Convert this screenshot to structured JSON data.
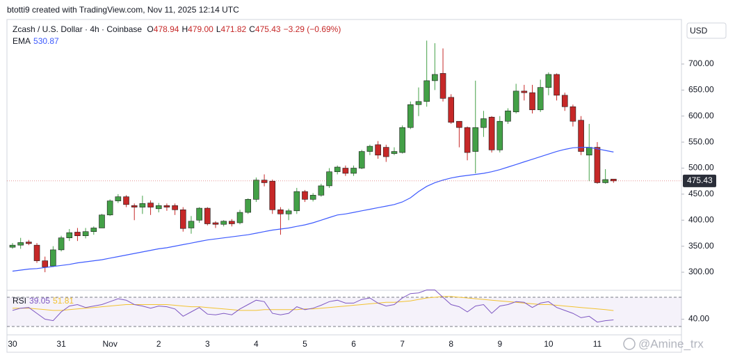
{
  "chart_data": {
    "type": "candlestick",
    "header": "btotti9 created with TradingView.com, Nov 11, 2025 12:14 UTC",
    "symbol": "Zcash / U.S. Dollar · 4h · Coinbase",
    "ohlc_legend": [
      [
        "O",
        "478.94"
      ],
      [
        "H",
        "479.00"
      ],
      [
        "L",
        "471.82"
      ],
      [
        "C",
        "475.43"
      ]
    ],
    "change": "−3.29 (−0.69%)",
    "currency": "USD",
    "last_price_label": "475.43",
    "watermark": "@Amine_trx",
    "up_color": "#43a047",
    "down_color": "#c62828",
    "categories": [
      "30",
      null,
      null,
      null,
      null,
      null,
      "31",
      null,
      null,
      null,
      null,
      null,
      "Nov",
      null,
      null,
      null,
      null,
      null,
      "2",
      null,
      null,
      null,
      null,
      null,
      "3",
      null,
      null,
      null,
      null,
      null,
      "4",
      null,
      null,
      null,
      null,
      null,
      "5",
      null,
      null,
      null,
      null,
      null,
      "6",
      null,
      null,
      null,
      null,
      null,
      "7",
      null,
      null,
      null,
      null,
      null,
      "8",
      null,
      null,
      null,
      null,
      null,
      "9",
      null,
      null,
      null,
      null,
      null,
      "10",
      null,
      null,
      null,
      null,
      null,
      "11",
      null,
      null
    ],
    "candles": {
      "open": [
        348,
        352,
        358,
        352,
        322,
        312,
        343,
        366,
        377,
        370,
        378,
        385,
        410,
        437,
        445,
        428,
        425,
        433,
        422,
        428,
        428,
        420,
        385,
        400,
        423,
        395,
        392,
        398,
        395,
        415,
        440,
        477,
        475,
        420,
        412,
        418,
        455,
        440,
        448,
        466,
        493,
        500,
        490,
        500,
        532,
        545,
        540,
        528,
        530,
        578,
        622,
        628,
        668,
        682,
        636,
        590,
        578,
        532,
        578,
        598,
        535,
        590,
        608,
        648,
        645,
        612,
        655,
        680,
        640,
        618,
        592,
        525,
        540,
        472,
        478.94
      ],
      "high": [
        356,
        366,
        362,
        356,
        330,
        350,
        370,
        383,
        385,
        385,
        388,
        412,
        440,
        450,
        448,
        432,
        447,
        438,
        433,
        432,
        432,
        425,
        408,
        425,
        425,
        398,
        400,
        402,
        420,
        442,
        482,
        488,
        478,
        425,
        422,
        462,
        458,
        452,
        470,
        500,
        505,
        505,
        505,
        535,
        545,
        552,
        545,
        540,
        582,
        628,
        655,
        745,
        740,
        730,
        642,
        590,
        580,
        668,
        610,
        600,
        600,
        615,
        662,
        660,
        660,
        670,
        684,
        682,
        645,
        622,
        600,
        585,
        550,
        498,
        479
      ],
      "low": [
        345,
        345,
        352,
        318,
        300,
        310,
        340,
        360,
        360,
        365,
        372,
        385,
        408,
        433,
        425,
        400,
        412,
        410,
        415,
        418,
        410,
        378,
        374,
        395,
        390,
        385,
        388,
        388,
        392,
        412,
        435,
        465,
        412,
        372,
        400,
        412,
        435,
        436,
        445,
        462,
        488,
        485,
        485,
        498,
        525,
        518,
        512,
        525,
        528,
        575,
        600,
        618,
        650,
        628,
        585,
        540,
        515,
        490,
        560,
        530,
        530,
        585,
        605,
        630,
        605,
        608,
        640,
        630,
        610,
        580,
        525,
        475,
        470,
        470,
        471.82
      ],
      "close": [
        352,
        357,
        355,
        322,
        310,
        343,
        366,
        376,
        370,
        378,
        385,
        410,
        437,
        445,
        430,
        425,
        432,
        425,
        428,
        425,
        420,
        384,
        398,
        423,
        393,
        392,
        398,
        393,
        415,
        440,
        477,
        472,
        420,
        412,
        418,
        455,
        440,
        448,
        466,
        493,
        502,
        490,
        500,
        532,
        542,
        525,
        522,
        532,
        578,
        622,
        628,
        668,
        680,
        634,
        588,
        578,
        530,
        578,
        595,
        535,
        590,
        610,
        648,
        645,
        612,
        655,
        680,
        640,
        618,
        590,
        532,
        540,
        472,
        478,
        475.43
      ]
    },
    "ema": {
      "name": "EMA",
      "value_label": "530.87",
      "color": "#3d5afe",
      "values": [
        302,
        304,
        306,
        307,
        309,
        311,
        313,
        315,
        318,
        320,
        322,
        324,
        327,
        330,
        333,
        336,
        339,
        342,
        345,
        347,
        350,
        353,
        356,
        359,
        362,
        364,
        366,
        368,
        370,
        372,
        375,
        378,
        381,
        383,
        385,
        388,
        391,
        395,
        400,
        405,
        410,
        412,
        415,
        418,
        421,
        424,
        427,
        430,
        435,
        443,
        455,
        465,
        472,
        477,
        481,
        484,
        486,
        488,
        490,
        493,
        497,
        502,
        507,
        512,
        517,
        522,
        527,
        532,
        536,
        539,
        540,
        540,
        537,
        534,
        530.87
      ]
    },
    "ylim": [
      266.6,
      782.9
    ],
    "yticks": [
      {
        "value": 300,
        "label": "300.00"
      },
      {
        "value": 350,
        "label": "350.00"
      },
      {
        "value": 400,
        "label": "400.00"
      },
      {
        "value": 450,
        "label": "450.00"
      },
      {
        "value": 500,
        "label": "500.00"
      },
      {
        "value": 550,
        "label": "550.00"
      },
      {
        "value": 600,
        "label": "600.00"
      },
      {
        "value": 650,
        "label": "650.00"
      },
      {
        "value": 700,
        "label": "700.00"
      }
    ],
    "rsi": {
      "name": "RSI",
      "value_label": "39.05",
      "color": "#7e57c2",
      "values": [
        52,
        55,
        56,
        48,
        40,
        38,
        50,
        58,
        60,
        56,
        58,
        60,
        64,
        68,
        66,
        60,
        58,
        55,
        58,
        57,
        54,
        44,
        50,
        56,
        47,
        46,
        48,
        46,
        54,
        60,
        66,
        64,
        48,
        46,
        48,
        57,
        53,
        55,
        59,
        64,
        66,
        62,
        62,
        67,
        69,
        62,
        58,
        60,
        69,
        75,
        76,
        80,
        80,
        70,
        60,
        57,
        50,
        58,
        60,
        48,
        58,
        60,
        64,
        63,
        56,
        62,
        64,
        56,
        52,
        48,
        42,
        44,
        36,
        38,
        39.05
      ],
      "ma": {
        "value_label": "51.81",
        "color": "#f2c230",
        "values": [
          55,
          55,
          55,
          54,
          53,
          52,
          52,
          53,
          54,
          55,
          56,
          57,
          58,
          59,
          60,
          60,
          60,
          60,
          60,
          60,
          59,
          58,
          57,
          57,
          56,
          55,
          54,
          53,
          52,
          52,
          52,
          53,
          53,
          53,
          53,
          53,
          54,
          54,
          55,
          56,
          57,
          58,
          59,
          60,
          61,
          62,
          63,
          63,
          64,
          65,
          67,
          69,
          70,
          71,
          71,
          70,
          69,
          68,
          67,
          66,
          65,
          64,
          63,
          62,
          61,
          60,
          60,
          59,
          58,
          57,
          56,
          55,
          54,
          53,
          51.81
        ]
      },
      "ylim": [
        21.43,
        78.57
      ],
      "yticks": [
        {
          "value": 40,
          "label": "40.00"
        }
      ],
      "levels": [
        70,
        30
      ]
    }
  }
}
